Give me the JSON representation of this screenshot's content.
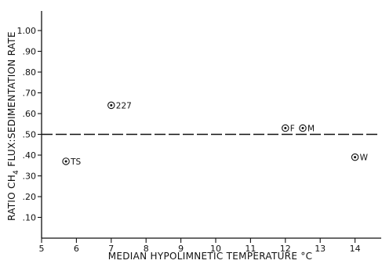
{
  "chart_data": {
    "type": "scatter",
    "xlabel": "MEDIAN HYPOLIMNETIC TEMPERATURE °C",
    "ylabel_parts": [
      "RATIO CH",
      "4",
      " FLUX:SEDIMENTATION RATE"
    ],
    "xlim": [
      5,
      14.4
    ],
    "ylim": [
      0,
      1.05
    ],
    "x_ticks": [
      5,
      6,
      7,
      8,
      9,
      10,
      11,
      12,
      13,
      14
    ],
    "y_ticks": [
      0.1,
      0.2,
      0.3,
      0.4,
      0.5,
      0.6,
      0.7,
      0.8,
      0.9,
      1.0
    ],
    "y_tick_labels": [
      ".10",
      ".20",
      ".30",
      ".40",
      ".50",
      ".60",
      ".70",
      ".80",
      ".90",
      "1.00"
    ],
    "points": [
      {
        "label": "TS",
        "x": 5.7,
        "y": 0.37
      },
      {
        "label": "227",
        "x": 7.0,
        "y": 0.64
      },
      {
        "label": "F",
        "x": 12.0,
        "y": 0.53
      },
      {
        "label": "M",
        "x": 12.5,
        "y": 0.53
      },
      {
        "label": "W",
        "x": 14.0,
        "y": 0.39
      }
    ],
    "reference_line": {
      "y": 0.5,
      "style": "dashed"
    },
    "grid": false
  }
}
